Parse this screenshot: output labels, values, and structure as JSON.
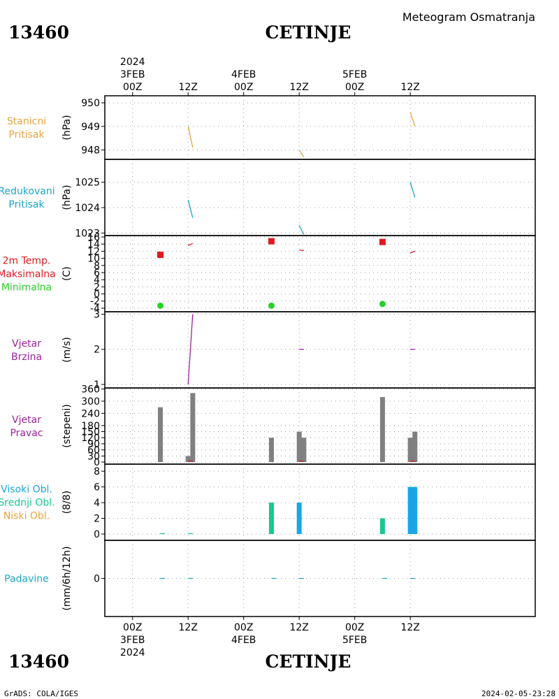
{
  "header": {
    "station_id": "13460",
    "station_name": "CETINJE",
    "product": "Meteogram Osmatranja"
  },
  "footer": {
    "credit": "GrADS: COLA/IGES",
    "timestamp": "2024-02-05-23:28"
  },
  "colors": {
    "pressure": "#e8a33c",
    "reduced_pressure": "#1aa6c8",
    "tmax": "#e0191e",
    "tmin": "#28d028",
    "wind": "#a020a0",
    "bar": "#808080",
    "high_cloud": "#1aa6e6",
    "mid_cloud": "#18c890",
    "low_cloud": "#e8a33c",
    "precip": "#1aa6c8"
  },
  "chart_data": {
    "type": "line",
    "x_axis": {
      "unit": "hours from 2024-02-03 00Z",
      "range": [
        -6,
        87
      ],
      "ticks": [
        {
          "x": 0,
          "top": [
            "2024",
            "3FEB",
            "00Z"
          ],
          "bottom": [
            "00Z",
            "3FEB",
            "2024"
          ]
        },
        {
          "x": 12,
          "top": [
            "12Z"
          ],
          "bottom": [
            "12Z"
          ]
        },
        {
          "x": 24,
          "top": [
            "4FEB",
            "00Z"
          ],
          "bottom": [
            "00Z",
            "4FEB"
          ]
        },
        {
          "x": 36,
          "top": [
            "12Z"
          ],
          "bottom": [
            "12Z"
          ]
        },
        {
          "x": 48,
          "top": [
            "5FEB",
            "00Z"
          ],
          "bottom": [
            "00Z",
            "5FEB"
          ]
        },
        {
          "x": 60,
          "top": [
            "12Z"
          ],
          "bottom": [
            "12Z"
          ]
        }
      ]
    },
    "panels": [
      {
        "id": "station_pressure",
        "labels": [
          {
            "text": "Stanicni",
            "color": "#e8a33c"
          },
          {
            "text": "Pritisak",
            "color": "#e8a33c"
          }
        ],
        "unit": "(hPa)",
        "ylim": [
          947.6,
          950.3
        ],
        "yticks": [
          {
            "v": 948,
            "label": "948"
          },
          {
            "v": 949,
            "label": "949"
          },
          {
            "v": 950,
            "label": "950"
          }
        ],
        "series": [
          {
            "kind": "line",
            "color": "#e8a33c",
            "points": [
              [
                12,
                949.0
              ],
              [
                13,
                948.1
              ]
            ]
          },
          {
            "kind": "line",
            "color": "#e8a33c",
            "points": [
              [
                36,
                948.0
              ],
              [
                37,
                947.7
              ]
            ]
          },
          {
            "kind": "line",
            "color": "#e8a33c",
            "points": [
              [
                60,
                949.6
              ],
              [
                61,
                949.0
              ]
            ]
          }
        ]
      },
      {
        "id": "reduced_pressure",
        "labels": [
          {
            "text": "Redukovani",
            "color": "#1aa6c8"
          },
          {
            "text": "Pritisak",
            "color": "#1aa6c8"
          }
        ],
        "unit": "(hPa)",
        "ylim": [
          1022.9,
          1025.9
        ],
        "yticks": [
          {
            "v": 1023,
            "label": "1023"
          },
          {
            "v": 1024,
            "label": "1024"
          },
          {
            "v": 1025,
            "label": "1025"
          }
        ],
        "series": [
          {
            "kind": "line",
            "color": "#1aa6c8",
            "points": [
              [
                12,
                1024.3
              ],
              [
                13,
                1023.6
              ]
            ]
          },
          {
            "kind": "line",
            "color": "#1aa6c8",
            "points": [
              [
                36,
                1023.3
              ],
              [
                37,
                1022.95
              ]
            ]
          },
          {
            "kind": "line",
            "color": "#1aa6c8",
            "points": [
              [
                60,
                1025.0
              ],
              [
                61,
                1024.4
              ]
            ]
          }
        ]
      },
      {
        "id": "temperature",
        "labels": [
          {
            "text": "2m Temp.",
            "color": "#e0191e"
          },
          {
            "text": "Maksimalna",
            "color": "#e0191e"
          },
          {
            "text": "Minimalna",
            "color": "#28d028"
          }
        ],
        "unit": "(C)",
        "ylim": [
          -5,
          16.4
        ],
        "yticks": [
          {
            "v": -4,
            "label": "-4"
          },
          {
            "v": -2,
            "label": "-2"
          },
          {
            "v": 0,
            "label": "0"
          },
          {
            "v": 2,
            "label": "2"
          },
          {
            "v": 4,
            "label": "4"
          },
          {
            "v": 6,
            "label": "6"
          },
          {
            "v": 8,
            "label": "8"
          },
          {
            "v": 10,
            "label": "10"
          },
          {
            "v": 12,
            "label": "12"
          },
          {
            "v": 14,
            "label": "14"
          },
          {
            "v": 16,
            "label": "16"
          }
        ],
        "series": [
          {
            "kind": "square",
            "color": "#e0191e",
            "points": [
              [
                6,
                11.0
              ],
              [
                30,
                14.8
              ],
              [
                54,
                14.6
              ]
            ]
          },
          {
            "kind": "dot",
            "color": "#28d028",
            "points": [
              [
                6,
                -3.3
              ],
              [
                30,
                -3.3
              ],
              [
                54,
                -2.8
              ]
            ]
          },
          {
            "kind": "line",
            "color": "#e0191e",
            "points": [
              [
                12,
                13.6
              ],
              [
                13,
                14.2
              ]
            ]
          },
          {
            "kind": "line",
            "color": "#e0191e",
            "points": [
              [
                36,
                12.3
              ],
              [
                37,
                12.2
              ]
            ]
          },
          {
            "kind": "line",
            "color": "#e0191e",
            "points": [
              [
                60,
                11.5
              ],
              [
                61,
                12.0
              ]
            ]
          }
        ]
      },
      {
        "id": "wind_speed",
        "labels": [
          {
            "text": "Vjetar",
            "color": "#a020a0"
          },
          {
            "text": "Brzina",
            "color": "#a020a0"
          }
        ],
        "unit": "(m/s)",
        "ylim": [
          0.9,
          3.07
        ],
        "yticks": [
          {
            "v": 1,
            "label": "1"
          },
          {
            "v": 2,
            "label": "2"
          },
          {
            "v": 3,
            "label": "3"
          }
        ],
        "series": [
          {
            "kind": "line",
            "color": "#a020a0",
            "points": [
              [
                12,
                1.0
              ],
              [
                13,
                3.0
              ]
            ]
          },
          {
            "kind": "line",
            "color": "#a020a0",
            "points": [
              [
                36,
                2.0
              ],
              [
                37,
                2.0
              ]
            ]
          },
          {
            "kind": "line",
            "color": "#a020a0",
            "points": [
              [
                60,
                2.0
              ],
              [
                61,
                2.0
              ]
            ]
          }
        ]
      },
      {
        "id": "wind_direction",
        "labels": [
          {
            "text": "Vjetar",
            "color": "#a020a0"
          },
          {
            "text": "Pravac",
            "color": "#a020a0"
          }
        ],
        "unit": "(stepeni)",
        "ylim": [
          -10,
          365
        ],
        "yticks": [
          {
            "v": 0,
            "label": "0"
          },
          {
            "v": 30,
            "label": "30"
          },
          {
            "v": 60,
            "label": "60"
          },
          {
            "v": 90,
            "label": "90"
          },
          {
            "v": 120,
            "label": "120"
          },
          {
            "v": 150,
            "label": "150"
          },
          {
            "v": 180,
            "label": "180"
          },
          {
            "v": 240,
            "label": "240"
          },
          {
            "v": 300,
            "label": "300"
          },
          {
            "v": 360,
            "label": "360"
          }
        ],
        "series": [
          {
            "kind": "bar",
            "color": "#808080",
            "points": [
              [
                6,
                270
              ],
              [
                12,
                30
              ],
              [
                13,
                340
              ],
              [
                30,
                120
              ],
              [
                36,
                150
              ],
              [
                37,
                120
              ],
              [
                54,
                320
              ],
              [
                60,
                120
              ],
              [
                61,
                150
              ]
            ]
          },
          {
            "kind": "line",
            "color": "#e0191e",
            "points": [
              [
                12,
                5
              ],
              [
                13,
                5
              ]
            ]
          },
          {
            "kind": "line",
            "color": "#e0191e",
            "points": [
              [
                36,
                5
              ],
              [
                37,
                5
              ]
            ]
          },
          {
            "kind": "line",
            "color": "#e0191e",
            "points": [
              [
                60,
                5
              ],
              [
                61,
                5
              ]
            ]
          }
        ]
      },
      {
        "id": "clouds",
        "labels": [
          {
            "text": "Visoki Obl.",
            "color": "#1aa6e6"
          },
          {
            "text": "Srednji Obl.",
            "color": "#18c890"
          },
          {
            "text": "Niski Obl.",
            "color": "#e8a33c"
          }
        ],
        "unit": "(8/8)",
        "ylim": [
          -0.8,
          8.9
        ],
        "yticks": [
          {
            "v": 0,
            "label": "0"
          },
          {
            "v": 2,
            "label": "2"
          },
          {
            "v": 4,
            "label": "4"
          },
          {
            "v": 6,
            "label": "6"
          },
          {
            "v": 8,
            "label": "8"
          }
        ],
        "series": [
          {
            "kind": "bar",
            "color": "#18c890",
            "points": [
              [
                30,
                4
              ],
              [
                54,
                2
              ]
            ]
          },
          {
            "kind": "bar",
            "color": "#1aa6e6",
            "points": [
              [
                36,
                4
              ],
              [
                60,
                6
              ],
              [
                61,
                6
              ]
            ]
          },
          {
            "kind": "line",
            "color": "#18c890",
            "points": [
              [
                6,
                0.05
              ],
              [
                7,
                0.05
              ]
            ]
          },
          {
            "kind": "line",
            "color": "#18c890",
            "points": [
              [
                12,
                0.05
              ],
              [
                13,
                0.05
              ]
            ]
          }
        ]
      },
      {
        "id": "precipitation",
        "labels": [
          {
            "text": "Padavine",
            "color": "#1aa6c8"
          }
        ],
        "unit": "(mm/6h/12h)",
        "ylim": [
          -5,
          5
        ],
        "yticks": [
          {
            "v": 0,
            "label": "0"
          }
        ],
        "series": [
          {
            "kind": "line",
            "color": "#1aa6c8",
            "points": [
              [
                6,
                0
              ],
              [
                7,
                0
              ]
            ]
          },
          {
            "kind": "line",
            "color": "#1aa6c8",
            "points": [
              [
                12,
                0
              ],
              [
                13,
                0
              ]
            ]
          },
          {
            "kind": "line",
            "color": "#1aa6c8",
            "points": [
              [
                30,
                0
              ],
              [
                31,
                0
              ]
            ]
          },
          {
            "kind": "line",
            "color": "#1aa6c8",
            "points": [
              [
                36,
                0
              ],
              [
                37,
                0
              ]
            ]
          },
          {
            "kind": "line",
            "color": "#1aa6c8",
            "points": [
              [
                54,
                0
              ],
              [
                55,
                0
              ]
            ]
          },
          {
            "kind": "line",
            "color": "#1aa6c8",
            "points": [
              [
                60,
                0
              ],
              [
                61,
                0
              ]
            ]
          }
        ]
      }
    ]
  }
}
